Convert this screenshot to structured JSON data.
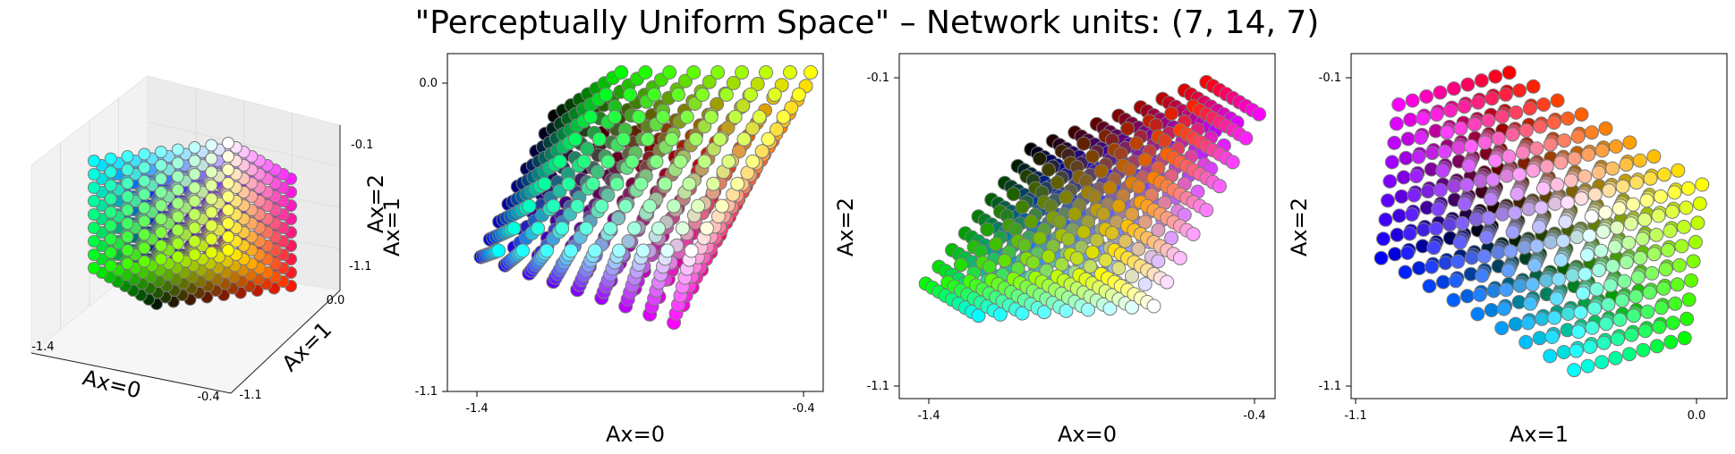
{
  "figure": {
    "title": "\"Perceptually Uniform Space\" – Network units: (7, 14, 7)"
  },
  "chart_data": [
    {
      "type": "scatter",
      "projection": "3d",
      "xlabel": "Ax=0",
      "ylabel": "Ax=1",
      "zlabel": "Ax=2",
      "x_ticks": [
        "-1.4",
        "-0.4"
      ],
      "y_ticks": [
        "-1.1",
        "0.0"
      ],
      "z_ticks": [
        "-1.1",
        "-0.1"
      ],
      "xlim": [
        -1.4,
        -0.4
      ],
      "ylim": [
        -1.1,
        0.0
      ],
      "zlim": [
        -1.1,
        -0.1
      ],
      "point_color": "RGB colour of each point",
      "grid": true
    },
    {
      "type": "scatter",
      "xlabel": "Ax=0",
      "ylabel": "Ax=1",
      "x_ticks": [
        "-1.4",
        "-0.4"
      ],
      "y_ticks": [
        "0.0",
        "-1.1"
      ],
      "xlim": [
        -1.4,
        -0.4
      ],
      "ylim": [
        -1.1,
        0.0
      ],
      "point_color": "RGB colour of each point",
      "grid": false
    },
    {
      "type": "scatter",
      "xlabel": "Ax=0",
      "ylabel": "Ax=2",
      "x_ticks": [
        "-1.4",
        "-0.4"
      ],
      "y_ticks": [
        "-0.1",
        "-1.1"
      ],
      "xlim": [
        -1.4,
        -0.4
      ],
      "ylim": [
        -1.1,
        -0.1
      ],
      "point_color": "RGB colour of each point",
      "grid": false
    },
    {
      "type": "scatter",
      "xlabel": "Ax=1",
      "ylabel": "Ax=2",
      "x_ticks": [
        "-1.1",
        "0.0"
      ],
      "y_ticks": [
        "-0.1",
        "-1.1"
      ],
      "xlim": [
        -1.1,
        0.0
      ],
      "ylim": [
        -1.1,
        -0.1
      ],
      "point_color": "RGB colour of each point",
      "grid": false
    }
  ]
}
